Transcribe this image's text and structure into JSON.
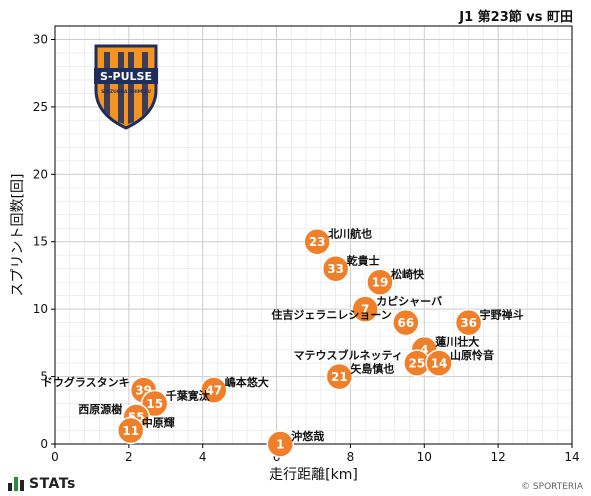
{
  "page": {
    "title": "J1 第23節 vs 町田",
    "brand": "STATs",
    "copyright": "© SPORTERIA",
    "logo": {
      "text_main": "S-PULSE",
      "text_sub": "SHIZUOKA SHIMIZU"
    }
  },
  "colors": {
    "marker": "#f07f2a",
    "marker_stroke": "#ffffff",
    "grid": "#cccccc",
    "logo_orange": "#f39322",
    "logo_navy": "#1e2e5c"
  },
  "chart_data": {
    "type": "scatter",
    "xlabel": "走行距離[km]",
    "ylabel": "スプリント回数[回]",
    "xlim": [
      0,
      14
    ],
    "ylim": [
      0,
      31
    ],
    "xticks": [
      0,
      2,
      4,
      6,
      8,
      10,
      12,
      14
    ],
    "yticks": [
      0,
      5,
      10,
      15,
      20,
      25,
      30
    ],
    "grid": true,
    "points": [
      {
        "number": "23",
        "name": "北川航也",
        "x": 7.1,
        "y": 15
      },
      {
        "number": "33",
        "name": "乾貴士",
        "x": 7.6,
        "y": 13
      },
      {
        "number": "19",
        "name": "松崎快",
        "x": 8.8,
        "y": 12
      },
      {
        "number": "7",
        "name": "カピシャーバ",
        "x": 8.4,
        "y": 10
      },
      {
        "number": "66",
        "name": "住吉ジェラニレショーン",
        "x": 9.5,
        "y": 9
      },
      {
        "number": "36",
        "name": "宇野禅斗",
        "x": 11.2,
        "y": 9
      },
      {
        "number": "4",
        "name": "蓮川壮大",
        "x": 10.0,
        "y": 7
      },
      {
        "number": "25",
        "name": "マテウスブルネッティ",
        "x": 9.8,
        "y": 6
      },
      {
        "number": "14",
        "name": "山原怜音",
        "x": 10.4,
        "y": 6
      },
      {
        "number": "21",
        "name": "矢島慎也",
        "x": 7.7,
        "y": 5
      },
      {
        "number": "47",
        "name": "嶋本悠大",
        "x": 4.3,
        "y": 4
      },
      {
        "number": "39",
        "name": "ドウグラスタンキ",
        "x": 2.4,
        "y": 4
      },
      {
        "number": "15",
        "name": "千葉寛汰",
        "x": 2.7,
        "y": 3
      },
      {
        "number": "55",
        "name": "西原源樹",
        "x": 2.2,
        "y": 2
      },
      {
        "number": "11",
        "name": "中原輝",
        "x": 2.05,
        "y": 1
      },
      {
        "number": "1",
        "name": "沖悠哉",
        "x": 6.1,
        "y": 0
      }
    ]
  }
}
